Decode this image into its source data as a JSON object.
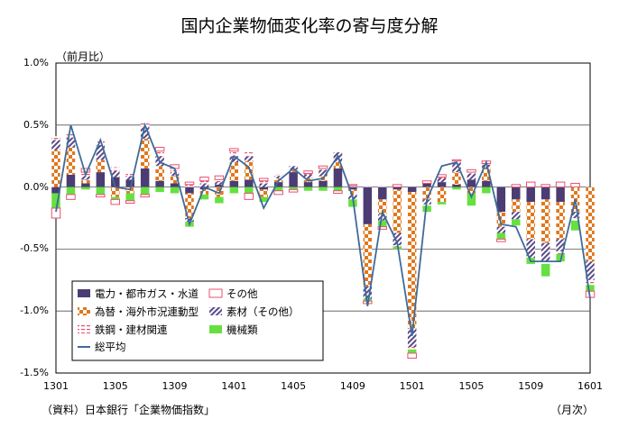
{
  "chart_data": {
    "type": "bar",
    "title": "国内企業物価変化率の寄与度分解",
    "ylabel": "（前月比）",
    "xunit": "（月次）",
    "source": "（資料）日本銀行「企業物価指数」",
    "ylim": [
      -1.5,
      1.0
    ],
    "yticks": [
      "1.0%",
      "0.5%",
      "0.0%",
      "-0.5%",
      "-1.0%",
      "-1.5%"
    ],
    "ytick_values": [
      1.0,
      0.5,
      0.0,
      -0.5,
      -1.0,
      -1.5
    ],
    "grid": "horizontal",
    "stacked": true,
    "legend_position": "bottom-left inside",
    "categories": [
      "1301",
      "1302",
      "1303",
      "1304",
      "1305",
      "1306",
      "1307",
      "1308",
      "1309",
      "1310",
      "1311",
      "1312",
      "1401",
      "1402",
      "1403",
      "1404",
      "1405",
      "1406",
      "1407",
      "1408",
      "1409",
      "1410",
      "1411",
      "1412",
      "1501",
      "1502",
      "1503",
      "1504",
      "1505",
      "1506",
      "1507",
      "1508",
      "1509",
      "1510",
      "1511",
      "1512",
      "1601"
    ],
    "xtick_labels": [
      "1301",
      "1305",
      "1309",
      "1401",
      "1405",
      "1409",
      "1501",
      "1505",
      "1509",
      "1601"
    ],
    "xtick_indices": [
      0,
      4,
      8,
      12,
      16,
      20,
      24,
      28,
      32,
      36
    ],
    "series": [
      {
        "name": "電力・都市ガス・水道",
        "color": "#4b3c73",
        "pattern": "solid",
        "values": [
          -0.05,
          0.1,
          0.03,
          0.12,
          0.08,
          0.06,
          0.15,
          0.05,
          0.03,
          -0.05,
          -0.02,
          0.02,
          0.05,
          0.06,
          -0.02,
          0.04,
          0.12,
          0.04,
          0.05,
          0.15,
          -0.02,
          -0.3,
          -0.1,
          -0.02,
          -0.04,
          0.03,
          0.04,
          0.02,
          0.06,
          0.05,
          -0.2,
          -0.1,
          -0.12,
          -0.1,
          -0.12,
          0.0,
          0.0
        ]
      },
      {
        "name": "為替・海外市況連動型",
        "color": "#e0781e",
        "pattern": "check",
        "values": [
          0.3,
          0.22,
          0.03,
          0.1,
          -0.08,
          -0.05,
          0.24,
          0.12,
          0.06,
          -0.2,
          -0.04,
          -0.08,
          0.15,
          0.15,
          -0.06,
          0.03,
          0.02,
          0.03,
          0.04,
          0.05,
          -0.04,
          -0.5,
          -0.12,
          -0.35,
          -1.1,
          -0.1,
          -0.12,
          0.1,
          -0.05,
          0.1,
          -0.12,
          -0.1,
          -0.3,
          -0.35,
          -0.3,
          -0.2,
          -0.6
        ]
      },
      {
        "name": "素材（その他）",
        "color": "#5a4a8a",
        "pattern": "hatch",
        "values": [
          0.08,
          0.08,
          0.03,
          0.12,
          0.05,
          0.03,
          0.1,
          0.08,
          0.03,
          -0.03,
          0.03,
          0.02,
          0.05,
          0.04,
          0.03,
          0.02,
          0.03,
          0.03,
          0.05,
          0.08,
          -0.04,
          -0.1,
          -0.05,
          -0.1,
          -0.15,
          -0.04,
          0.03,
          0.08,
          0.05,
          0.03,
          -0.05,
          -0.06,
          -0.15,
          -0.15,
          -0.1,
          -0.05,
          -0.15
        ]
      },
      {
        "name": "鉄鋼・建材関連",
        "color": "#e8506e",
        "pattern": "dash",
        "values": [
          0.03,
          0.04,
          0.03,
          0.04,
          0.03,
          0.02,
          0.03,
          0.04,
          0.03,
          0.02,
          0.02,
          0.02,
          0.04,
          0.03,
          0.02,
          0.01,
          0.01,
          0.01,
          0.01,
          0.01,
          0.01,
          0.01,
          0.01,
          -0.01,
          -0.02,
          -0.01,
          0.01,
          0.01,
          0.01,
          0.01,
          0.0,
          0.0,
          0.0,
          -0.02,
          -0.02,
          -0.02,
          -0.04
        ]
      },
      {
        "name": "機械類",
        "color": "#66e040",
        "pattern": "solid",
        "values": [
          -0.12,
          -0.06,
          -0.02,
          -0.06,
          -0.02,
          -0.06,
          -0.06,
          -0.04,
          -0.05,
          -0.04,
          -0.04,
          -0.05,
          -0.05,
          -0.05,
          -0.04,
          -0.03,
          -0.02,
          -0.03,
          -0.03,
          -0.03,
          -0.06,
          -0.02,
          -0.05,
          -0.02,
          -0.03,
          -0.05,
          -0.02,
          -0.02,
          -0.1,
          -0.05,
          -0.05,
          -0.05,
          -0.05,
          -0.1,
          -0.06,
          -0.08,
          -0.05
        ]
      },
      {
        "name": "その他",
        "color": "#e8506e",
        "pattern": "outline",
        "values": [
          -0.08,
          -0.04,
          0.03,
          -0.02,
          -0.04,
          -0.02,
          -0.02,
          0.03,
          0.03,
          0.02,
          0.03,
          0.03,
          0.02,
          -0.05,
          0.02,
          -0.03,
          -0.02,
          0.02,
          0.02,
          -0.02,
          0.01,
          -0.02,
          -0.02,
          0.02,
          -0.04,
          0.02,
          0.02,
          0.01,
          0.02,
          0.02,
          -0.02,
          0.02,
          0.04,
          0.02,
          0.04,
          0.03,
          -0.05
        ]
      }
    ],
    "line": {
      "name": "総平均",
      "color": "#3e6b9a",
      "values": [
        -0.2,
        0.5,
        0.1,
        0.38,
        0.0,
        -0.02,
        0.5,
        0.2,
        0.15,
        -0.3,
        0.0,
        -0.05,
        0.25,
        0.16,
        -0.17,
        0.05,
        0.15,
        0.05,
        0.07,
        0.25,
        -0.08,
        -0.96,
        -0.2,
        -0.45,
        -1.2,
        -0.1,
        0.17,
        0.2,
        -0.08,
        0.2,
        -0.3,
        -0.32,
        -0.6,
        -0.6,
        -0.6,
        -0.1,
        -0.9
      ]
    }
  }
}
